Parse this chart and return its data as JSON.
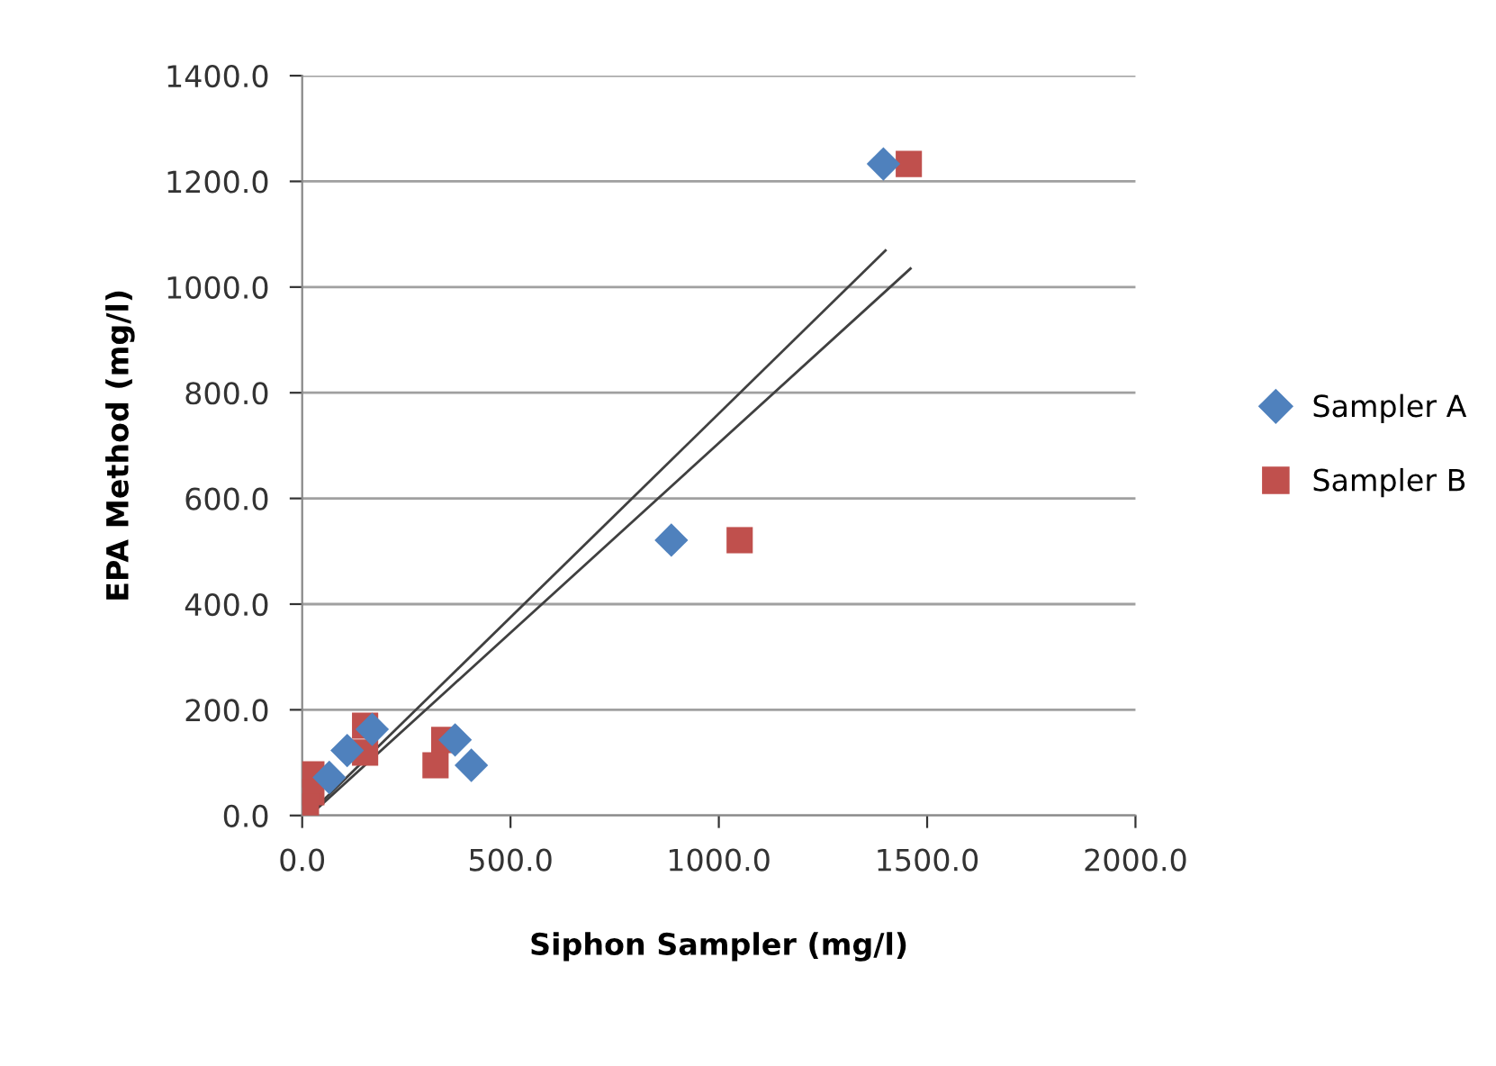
{
  "chart_data": {
    "type": "scatter",
    "xlabel": "Siphon Sampler (mg/l)",
    "ylabel": "EPA Method (mg/l)",
    "xlim": [
      0,
      2000
    ],
    "xticks": [
      {
        "value": 0,
        "label": "0.0"
      },
      {
        "value": 500,
        "label": "500.0"
      },
      {
        "value": 1000,
        "label": "1000.0"
      },
      {
        "value": 1500,
        "label": "1500.0"
      },
      {
        "value": 2000,
        "label": "2000.0"
      }
    ],
    "ylim": [
      0,
      1400
    ],
    "yticks": [
      {
        "value": 0,
        "label": "0.0"
      },
      {
        "value": 200,
        "label": "200.0"
      },
      {
        "value": 400,
        "label": "400.0"
      },
      {
        "value": 600,
        "label": "600.0"
      },
      {
        "value": 800,
        "label": "800.0"
      },
      {
        "value": 1000,
        "label": "1000.0"
      },
      {
        "value": 1200,
        "label": "1200.0"
      },
      {
        "value": 1400,
        "label": "1400.0"
      }
    ],
    "grid": "y",
    "legend": "right",
    "series": [
      {
        "name": "Sampler A",
        "color": "#4f81bd",
        "marker": "diamond",
        "x": [
          1395,
          886,
          108,
          406,
          367,
          65,
          168
        ],
        "values": [
          1233,
          521,
          123,
          95,
          143,
          72,
          163
        ]
      },
      {
        "name": "Sampler B",
        "color": "#c0504d",
        "marker": "square",
        "x": [
          1456,
          1050,
          151,
          151,
          341,
          320,
          22,
          22,
          9
        ],
        "values": [
          1233,
          521,
          170,
          119,
          143,
          95,
          78,
          44,
          17
        ]
      },
      {
        "type": "line",
        "color": "#404040",
        "marker": "none",
        "x": [
          20,
          1400
        ],
        "values": [
          5,
          1069
        ]
      },
      {
        "type": "line",
        "color": "#404040",
        "marker": "none",
        "x": [
          25,
          1460
        ],
        "values": [
          5,
          1035
        ]
      }
    ]
  }
}
